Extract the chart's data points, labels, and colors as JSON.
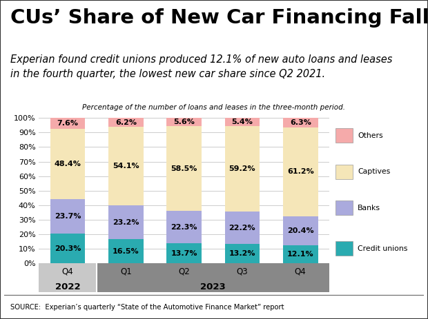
{
  "title": "CUs’ Share of New Car Financing Falls",
  "subtitle": "Experian found credit unions produced 12.1% of new auto loans and leases\nin the fourth quarter, the lowest new car share since Q2 2021.",
  "chart_note": "Percentage of the number of loans and leases in the three-month period.",
  "source": "SOURCE:  Experian’s quarterly “State of the Automotive Finance Market” report",
  "credit_unions": [
    20.3,
    16.5,
    13.7,
    13.2,
    12.1
  ],
  "banks": [
    23.7,
    23.2,
    22.3,
    22.2,
    20.4
  ],
  "captives": [
    48.4,
    54.1,
    58.5,
    59.2,
    61.2
  ],
  "others": [
    7.6,
    6.2,
    5.6,
    5.4,
    6.3
  ],
  "color_credit_unions": "#2AABB0",
  "color_banks": "#AAAADD",
  "color_captives": "#F5E6B8",
  "color_others": "#F5AAAA",
  "color_gray_light": "#C8C8C8",
  "color_gray_dark": "#888888",
  "bar_width": 0.6,
  "ylim": [
    0,
    100
  ],
  "yticks": [
    0,
    10,
    20,
    30,
    40,
    50,
    60,
    70,
    80,
    90,
    100
  ],
  "background_color": "#FFFFFF",
  "border_color": "#333333"
}
